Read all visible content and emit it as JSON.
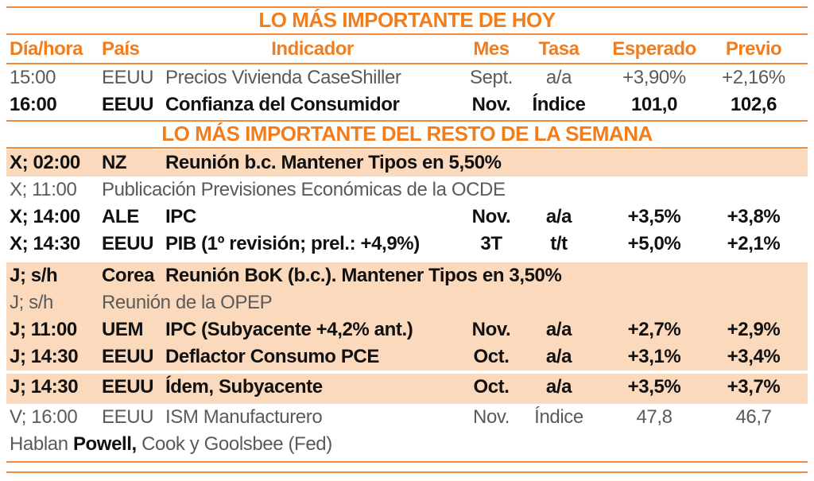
{
  "section1_title": "LO MÁS IMPORTANTE DE HOY",
  "headers": {
    "dia": "Día/hora",
    "pais": "País",
    "indicador": "Indicador",
    "mes": "Mes",
    "tasa": "Tasa",
    "esperado": "Esperado",
    "previo": "Previo"
  },
  "today": [
    {
      "dia": "15:00",
      "pais": "EEUU",
      "indicador": "Precios Vivienda CaseShiller",
      "mes": "Sept.",
      "tasa": "a/a",
      "esperado": "+3,90%",
      "previo": "+2,16%"
    },
    {
      "dia": "16:00",
      "pais": "EEUU",
      "indicador": "Confianza del Consumidor",
      "mes": "Nov.",
      "tasa": "Índice",
      "esperado": "101,0",
      "previo": "102,6"
    }
  ],
  "section2_title": "LO MÁS IMPORTANTE DEL RESTO DE LA SEMANA",
  "week": [
    {
      "dia": "X; 02:00",
      "pais": "NZ",
      "indicador": "Reunión b.c. Mantener Tipos en 5,50%",
      "mes": "",
      "tasa": "",
      "esperado": "",
      "previo": ""
    },
    {
      "dia": "X; 11:00",
      "pais": "",
      "indicador": "Publicación Previsiones Económicas de la OCDE",
      "mes": "",
      "tasa": "",
      "esperado": "",
      "previo": ""
    },
    {
      "dia": "X; 14:00",
      "pais": "ALE",
      "indicador": "IPC",
      "mes": "Nov.",
      "tasa": "a/a",
      "esperado": "+3,5%",
      "previo": "+3,8%"
    },
    {
      "dia": "X; 14:30",
      "pais": "EEUU",
      "indicador": "PIB (1º revisión; prel.: +4,9%)",
      "mes": "3T",
      "tasa": "t/t",
      "esperado": "+5,0%",
      "previo": "+2,1%"
    },
    {
      "dia": "J; s/h",
      "pais": "Corea",
      "indicador": "Reunión BoK (b.c.). Mantener Tipos en 3,50%",
      "mes": "",
      "tasa": "",
      "esperado": "",
      "previo": ""
    },
    {
      "dia": "J; s/h",
      "pais": "",
      "indicador": "Reunión de la OPEP",
      "mes": "",
      "tasa": "",
      "esperado": "",
      "previo": ""
    },
    {
      "dia": "J; 11:00",
      "pais": "UEM",
      "indicador": "IPC (Subyacente +4,2% ant.)",
      "mes": "Nov.",
      "tasa": "a/a",
      "esperado": "+2,7%",
      "previo": "+2,9%"
    },
    {
      "dia": "J; 14:30",
      "pais": "EEUU",
      "indicador": "Deflactor Consumo PCE",
      "mes": "Oct.",
      "tasa": "a/a",
      "esperado": "+3,1%",
      "previo": "+3,4%"
    },
    {
      "dia": "J; 14:30",
      "pais": "EEUU",
      "indicador": "Ídem, Subyacente",
      "mes": "Oct.",
      "tasa": "a/a",
      "esperado": "+3,5%",
      "previo": "+3,7%"
    },
    {
      "dia": "V; 16:00",
      "pais": "EEUU",
      "indicador": "ISM Manufacturero",
      "mes": "Nov.",
      "tasa": "Índice",
      "esperado": "47,8",
      "previo": "46,7"
    }
  ],
  "footer": {
    "prefix": "Hablan ",
    "bold": "Powell,",
    "suffix": " Cook y Goolsbee (Fed)"
  },
  "colors": {
    "accent": "#f07e1e",
    "shade": "#fbd9bd"
  }
}
